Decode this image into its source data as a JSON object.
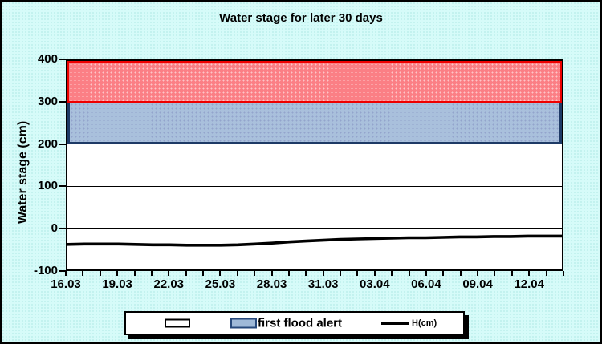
{
  "title": "Water stage for later 30 days",
  "colors": {
    "background": "#D6FBF9",
    "frame": "#000000",
    "flood_band_fill": "#FB7F85",
    "flood_band_border": "#EE0000",
    "alert_band_fill": "#A9C0DC",
    "alert_band_border": "#1E3A66",
    "series_line": "#000000"
  },
  "chart_data": {
    "type": "line",
    "title": "Water stage for later 30 days",
    "xlabel": "",
    "ylabel": "Water stage (cm)",
    "ylim": [
      -100,
      400
    ],
    "yticks": [
      400,
      300,
      200,
      100,
      0,
      -100
    ],
    "ytick_labels": [
      "400",
      "300",
      "200",
      "100",
      "0",
      "-100"
    ],
    "xtick_labels": [
      "16.03",
      "19.03",
      "22.03",
      "25.03",
      "28.03",
      "31.03",
      "03.04",
      "06.04",
      "09.04",
      "12.04"
    ],
    "x_label_interval_days": 3,
    "n_days": 30,
    "grid": true,
    "legend_position": "bottom",
    "bands": [
      {
        "name": "",
        "from": 300,
        "to": 400
      },
      {
        "name": "first flood alert",
        "from": 200,
        "to": 300
      }
    ],
    "series": [
      {
        "name": "H(cm)",
        "values": [
          -40,
          -39,
          -39,
          -39,
          -40,
          -41,
          -41,
          -42,
          -42,
          -42,
          -41,
          -39,
          -37,
          -34,
          -32,
          -30,
          -28,
          -27,
          -26,
          -25,
          -24,
          -24,
          -23,
          -22,
          -22,
          -21,
          -21,
          -20,
          -20,
          -20
        ]
      }
    ]
  },
  "legend": {
    "items": [
      {
        "label": "",
        "swatch": "white-box"
      },
      {
        "label": "first flood alert",
        "swatch": "blue-box"
      },
      {
        "label": "H(cm)",
        "swatch": "black-line"
      }
    ]
  }
}
